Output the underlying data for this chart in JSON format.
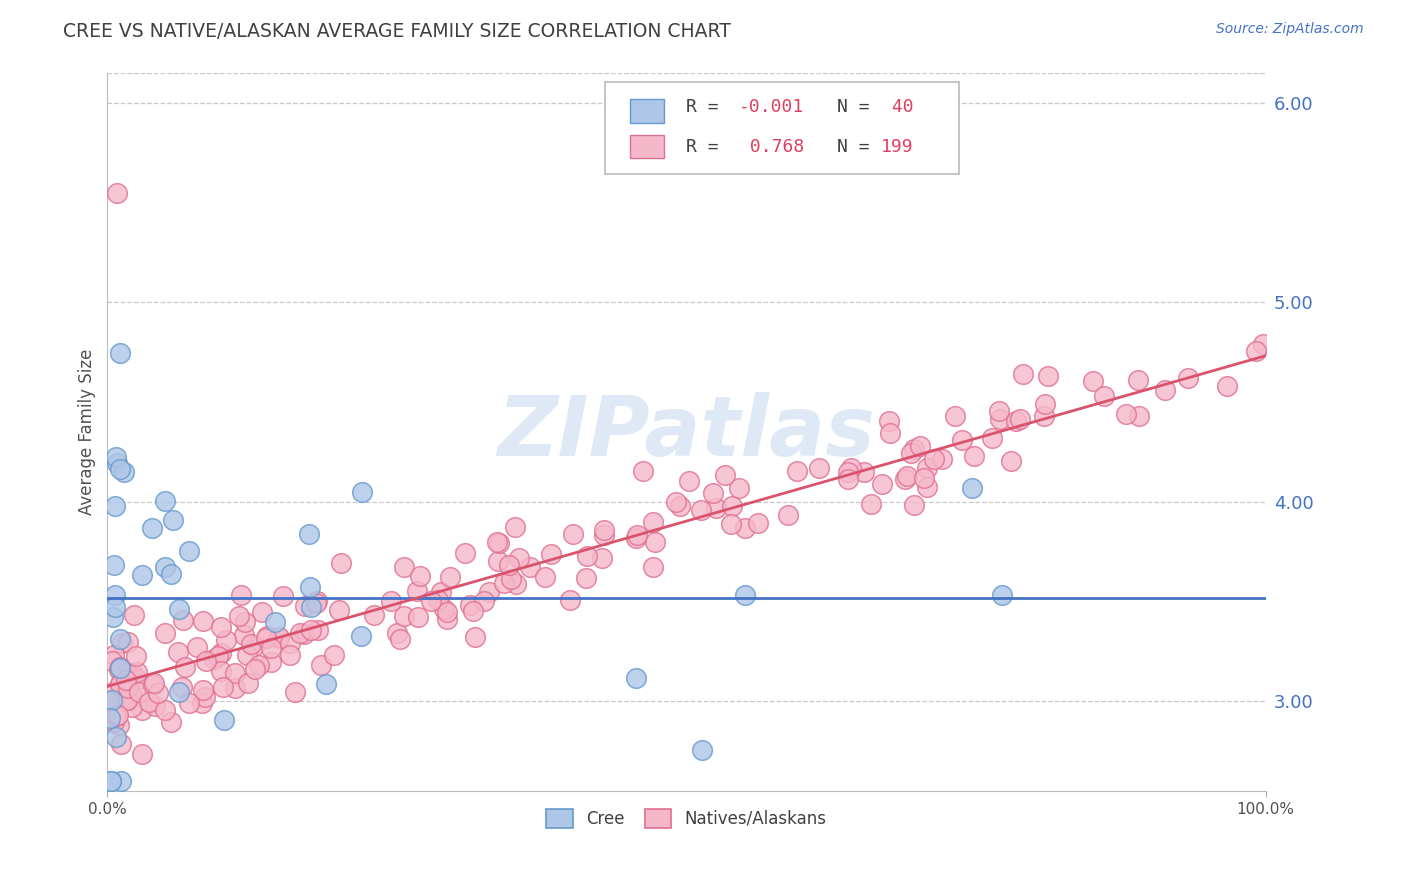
{
  "title": "CREE VS NATIVE/ALASKAN AVERAGE FAMILY SIZE CORRELATION CHART",
  "source": "Source: ZipAtlas.com",
  "ylabel": "Average Family Size",
  "xlim": [
    0.0,
    100.0
  ],
  "ylim": [
    2.55,
    6.15
  ],
  "yticks": [
    3.0,
    4.0,
    5.0,
    6.0
  ],
  "background_color": "#ffffff",
  "grid_color": "#c8c8c8",
  "title_color": "#404040",
  "axis_label_color": "#505050",
  "right_tick_color": "#4472c4",
  "cree_face_color": "#aec6e8",
  "cree_edge_color": "#6699cc",
  "native_face_color": "#f5b8ca",
  "native_edge_color": "#e07090",
  "cree_line_color": "#4472c4",
  "native_line_color": "#d9536e",
  "cree_R": -0.001,
  "cree_N": 40,
  "native_R": 0.768,
  "native_N": 199,
  "watermark_color": "#c5d8ee",
  "watermark_alpha": 0.55,
  "legend_R_cree_color": "#e05060",
  "legend_R_native_color": "#e05060",
  "legend_N_color": "#404040",
  "source_color": "#4472c4"
}
